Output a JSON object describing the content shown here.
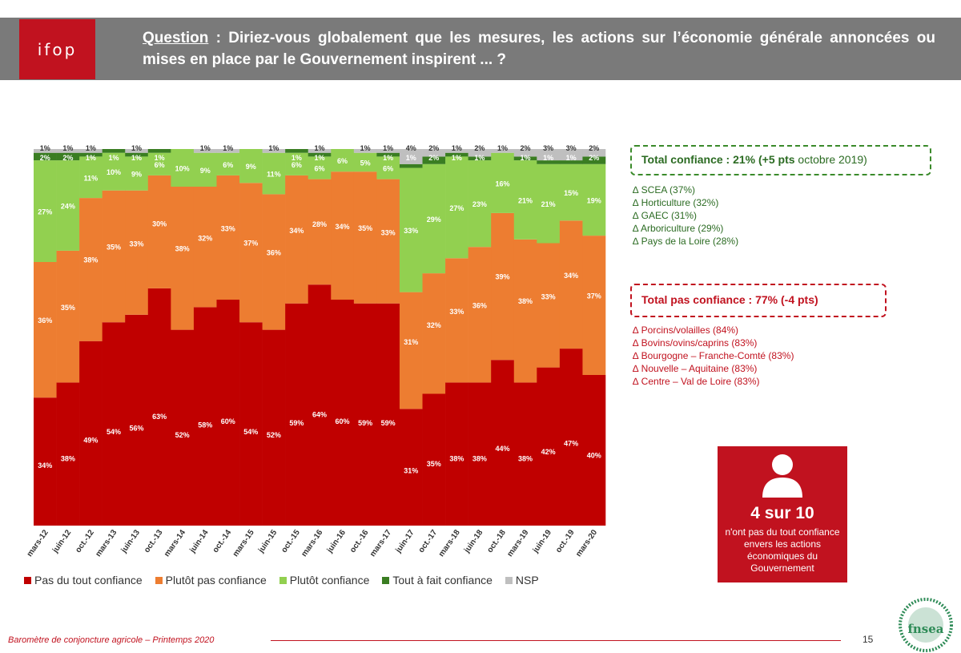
{
  "header": {
    "logo_text": "ifop",
    "question_label": "Question",
    "question_text": " : Diriez-vous globalement que les mesures, les actions sur l’économie générale annoncées ou mises en place par le Gouvernement inspirent ... ?"
  },
  "chart_data": {
    "type": "bar",
    "stacked": true,
    "percent": true,
    "categories": [
      "mars-12",
      "juin-12",
      "oct.-12",
      "mars-13",
      "juin-13",
      "oct.-13",
      "mars-14",
      "juin-14",
      "oct.-14",
      "mars-15",
      "juin-15",
      "oct.-15",
      "mars-16",
      "juin-16",
      "oct.-16",
      "mars-17",
      "juin-17",
      "oct.-17",
      "mars-18",
      "juin-18",
      "oct.-18",
      "mars-19",
      "juin-19",
      "oct.-19",
      "mars-20"
    ],
    "series": [
      {
        "name": "Pas du tout confiance",
        "color": "#c00000",
        "values": [
          34,
          38,
          49,
          54,
          56,
          63,
          52,
          58,
          60,
          54,
          52,
          59,
          64,
          60,
          59,
          59,
          31,
          35,
          38,
          38,
          44,
          38,
          42,
          47,
          40
        ]
      },
      {
        "name": "Plutôt pas confiance",
        "color": "#ed7d31",
        "values": [
          36,
          35,
          38,
          35,
          33,
          30,
          38,
          32,
          33,
          37,
          36,
          34,
          28,
          34,
          35,
          33,
          31,
          32,
          33,
          36,
          39,
          38,
          33,
          34,
          37
        ]
      },
      {
        "name": "Plutôt confiance",
        "color": "#92d050",
        "values": [
          27,
          24,
          11,
          10,
          9,
          6,
          10,
          9,
          6,
          9,
          11,
          6,
          6,
          6,
          5,
          6,
          33,
          29,
          27,
          23,
          16,
          21,
          21,
          15,
          19
        ]
      },
      {
        "name": "Tout à fait confiance",
        "color": "#3a7d22",
        "values": [
          2,
          2,
          1,
          1,
          1,
          1,
          0,
          0,
          0,
          0,
          0,
          1,
          1,
          0,
          0,
          1,
          1,
          2,
          1,
          1,
          0,
          1,
          1,
          1,
          2
        ]
      },
      {
        "name": "NSP",
        "color": "#bfbfbf",
        "values": [
          1,
          1,
          1,
          0,
          1,
          0,
          0,
          1,
          1,
          0,
          1,
          0,
          1,
          0,
          1,
          1,
          4,
          2,
          1,
          2,
          1,
          2,
          3,
          3,
          2
        ]
      }
    ],
    "labels": {
      "pas": [
        "34%",
        "38%",
        "49%",
        "54%",
        "56%",
        "63%",
        "52%",
        "58%",
        "60%",
        "54%",
        "52%",
        "59%",
        "64%",
        "60%",
        "59%",
        "59%",
        "31%",
        "35%",
        "38%",
        "38%",
        "44%",
        "38%",
        "42%",
        "47%",
        "40%"
      ],
      "plutot_pas": [
        "36%",
        "35%",
        "38%",
        "35%",
        "33%",
        "30%",
        "38%",
        "32%",
        "33%",
        "37%",
        "36%",
        "34%",
        "28%",
        "34%",
        "35%",
        "33%",
        "31%",
        "32%",
        "33%",
        "36%",
        "39%",
        "38%",
        "33%",
        "34%",
        "37%"
      ],
      "plutot": [
        "27%",
        "24%",
        "11%",
        "10%",
        "9%",
        "6%",
        "10%",
        "9%",
        "6%",
        "9%",
        "11%",
        "6%",
        "6%",
        "6%",
        "5%",
        "6%",
        "33%",
        "29%",
        "27%",
        "23%",
        "16%",
        "21%",
        "21%",
        "15%",
        "19%"
      ],
      "tout": [
        "2%",
        "2%",
        "1%",
        "1%",
        "1%",
        "1%",
        "",
        "",
        "",
        "",
        "",
        "1%",
        "1%",
        "",
        "",
        "1%",
        "1%",
        "2%",
        "1%",
        "1%",
        "",
        "1%",
        "1%",
        "1%",
        "2%"
      ],
      "nsp": [
        "1%",
        "1%",
        "1%",
        "",
        "1%",
        "",
        "",
        "1%",
        "1%",
        "",
        "1%",
        "",
        "1%",
        "",
        "1%",
        "1%",
        "4%",
        "2%",
        "1%",
        "2%",
        "1%",
        "2%",
        "3%",
        "3%",
        "2%"
      ]
    },
    "ylim": [
      0,
      100
    ]
  },
  "legend": [
    {
      "label": "Pas du tout confiance",
      "color": "#c00000"
    },
    {
      "label": "Plutôt pas confiance",
      "color": "#ed7d31"
    },
    {
      "label": "Plutôt confiance",
      "color": "#92d050"
    },
    {
      "label": "Tout à fait confiance",
      "color": "#3a7d22"
    },
    {
      "label": "NSP",
      "color": "#bfbfbf"
    }
  ],
  "total_confiance": {
    "title": "Total confiance : 21% (",
    "pts": "+5 pts",
    "ref": " octobre 2019)",
    "items": [
      "∆ SCEA (37%)",
      "∆ Horticulture (32%)",
      "∆ GAEC (31%)",
      "∆ Arboriculture (29%)",
      "∆ Pays de la Loire (28%)"
    ]
  },
  "total_pas_confiance": {
    "title": "Total pas confiance : 77% (-4 pts)",
    "items": [
      "∆ Porcins/volailles (84%)",
      "∆ Bovins/ovins/caprins (83%)",
      "∆ Bourgogne – Franche-Comté (83%)",
      "∆ Nouvelle – Aquitaine (83%)",
      "∆ Centre – Val de Loire (83%)"
    ]
  },
  "highlight": {
    "big": "4 sur 10",
    "text": "n'ont pas du tout confiance envers les actions économiques du Gouvernement"
  },
  "footer": {
    "source": "Baromètre de conjoncture agricole – Printemps 2020",
    "page": "15",
    "logo_text": "fnsea"
  }
}
